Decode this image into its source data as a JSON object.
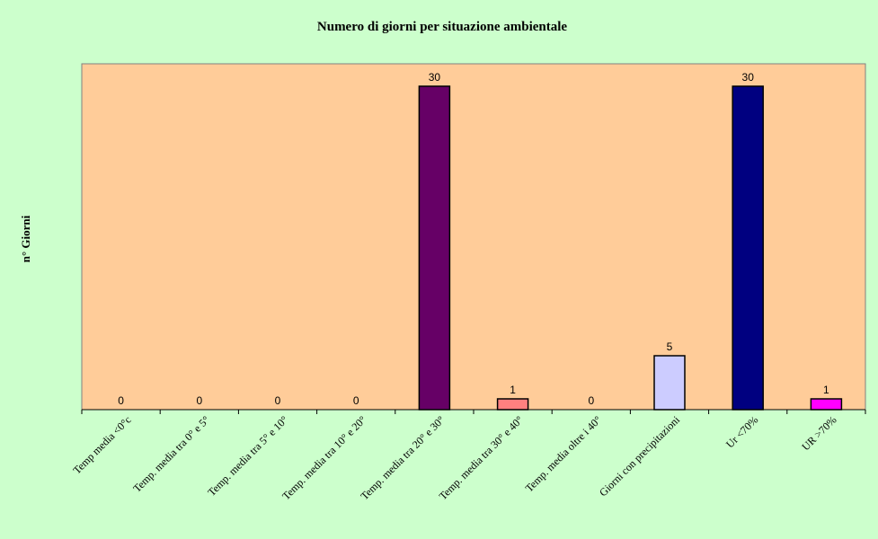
{
  "chart_data": {
    "type": "bar",
    "title": "Numero di giorni per situazione ambientale",
    "xlabel": "",
    "ylabel": "n° Giorni",
    "ylim": [
      0,
      30
    ],
    "grid": false,
    "legend": "none",
    "plot_background": "#ffcc99",
    "page_background": "#ccffcc",
    "categories": [
      "Temp media <0°c",
      "Temp. media tra 0° e 5°",
      "Temp. media tra 5° e 10°",
      "Temp. media tra 10° e 20°",
      "Temp. media tra 20° e 30°",
      "Temp. media tra 30° e 40°",
      "Temp. media oltre i 40°",
      "Giorni con precipitazioni",
      "Ur <70%",
      "UR >70%"
    ],
    "values": [
      0,
      0,
      0,
      0,
      30,
      1,
      0,
      5,
      30,
      1
    ],
    "bar_colors": [
      "#993366",
      "#993366",
      "#993366",
      "#993366",
      "#660066",
      "#ff8080",
      "#0066cc",
      "#ccccff",
      "#000080",
      "#ff00ff"
    ]
  }
}
